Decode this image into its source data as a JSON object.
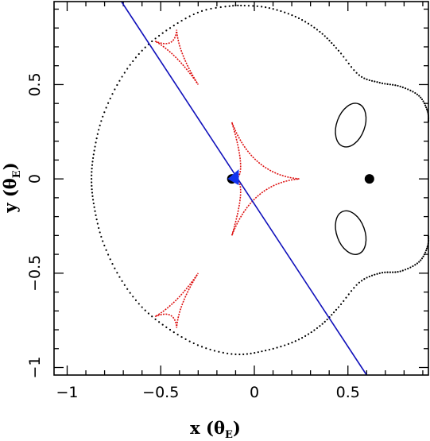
{
  "chart_data": {
    "type": "scatter",
    "title": "",
    "xlabel": {
      "prefix": "x (θ",
      "sub": "E",
      "suffix": ")"
    },
    "ylabel": {
      "prefix": "y (θ",
      "sub": "E",
      "suffix": ")"
    },
    "xlim": [
      -1.07,
      0.93
    ],
    "ylim": [
      -1.04,
      0.94
    ],
    "xticks": [
      -1,
      -0.5,
      0,
      0.5
    ],
    "xtick_labels": [
      "−1",
      "−0.5",
      "0",
      "0.5"
    ],
    "yticks": [
      -1,
      -0.5,
      0,
      0.5
    ],
    "ytick_labels": [
      "−1",
      "−0.5",
      "0",
      "0.5"
    ],
    "x_minor_step": 0.1,
    "y_minor_step": 0.1,
    "grid": false,
    "colors": {
      "critical_curve": "#000000",
      "caustic": "#dd1111",
      "trajectory": "#1111bb",
      "source": "#1133ee",
      "lens": "#000000"
    },
    "critical_curves": [
      {
        "name": "outer",
        "points": [
          [
            -0.1,
            0.92
          ],
          [
            -0.28,
            0.89
          ],
          [
            -0.45,
            0.8
          ],
          [
            -0.6,
            0.68
          ],
          [
            -0.72,
            0.52
          ],
          [
            -0.81,
            0.33
          ],
          [
            -0.855,
            0.15
          ],
          [
            -0.87,
            0.0
          ],
          [
            -0.855,
            -0.15
          ],
          [
            -0.81,
            -0.33
          ],
          [
            -0.72,
            -0.52
          ],
          [
            -0.6,
            -0.68
          ],
          [
            -0.45,
            -0.8
          ],
          [
            -0.28,
            -0.89
          ],
          [
            -0.1,
            -0.93
          ],
          [
            0.06,
            -0.91
          ],
          [
            0.22,
            -0.86
          ],
          [
            0.35,
            -0.78
          ],
          [
            0.45,
            -0.68
          ],
          [
            0.56,
            -0.55
          ],
          [
            0.67,
            -0.5
          ],
          [
            0.78,
            -0.49
          ],
          [
            0.88,
            -0.44
          ],
          [
            0.925,
            -0.36
          ],
          [
            0.93,
            -0.3
          ]
        ],
        "points_upper": [
          [
            -0.1,
            0.92
          ],
          [
            0.06,
            0.91
          ],
          [
            0.22,
            0.86
          ],
          [
            0.35,
            0.78
          ],
          [
            0.45,
            0.68
          ],
          [
            0.56,
            0.55
          ],
          [
            0.67,
            0.51
          ],
          [
            0.78,
            0.49
          ],
          [
            0.88,
            0.44
          ],
          [
            0.925,
            0.36
          ],
          [
            0.93,
            0.3
          ]
        ]
      },
      {
        "name": "inner-upper",
        "ellipse": {
          "cx": 0.515,
          "cy": 0.285,
          "rx": 0.075,
          "ry": 0.12,
          "rotate": 20
        }
      },
      {
        "name": "inner-lower",
        "ellipse": {
          "cx": 0.515,
          "cy": -0.285,
          "rx": 0.075,
          "ry": 0.12,
          "rotate": -20
        }
      }
    ],
    "caustics": [
      {
        "name": "central",
        "cusps": [
          [
            -0.12,
            0.3
          ],
          [
            0.24,
            0.0
          ],
          [
            -0.12,
            -0.3
          ],
          [
            -0.1,
            0.0
          ]
        ]
      },
      {
        "name": "upper-left",
        "cusps": [
          [
            -0.53,
            0.73
          ],
          [
            -0.415,
            0.79
          ],
          [
            -0.3,
            0.5
          ]
        ]
      },
      {
        "name": "lower-left",
        "cusps": [
          [
            -0.53,
            -0.73
          ],
          [
            -0.415,
            -0.79
          ],
          [
            -0.3,
            -0.5
          ]
        ]
      }
    ],
    "trajectory": {
      "x1": -0.71,
      "y1": 0.94,
      "x2": 0.6,
      "y2": -1.04
    },
    "source": {
      "x": -0.1,
      "y": 0.0
    },
    "lenses": [
      {
        "x": -0.12,
        "y": 0.0
      },
      {
        "x": 0.615,
        "y": 0.0
      }
    ]
  }
}
